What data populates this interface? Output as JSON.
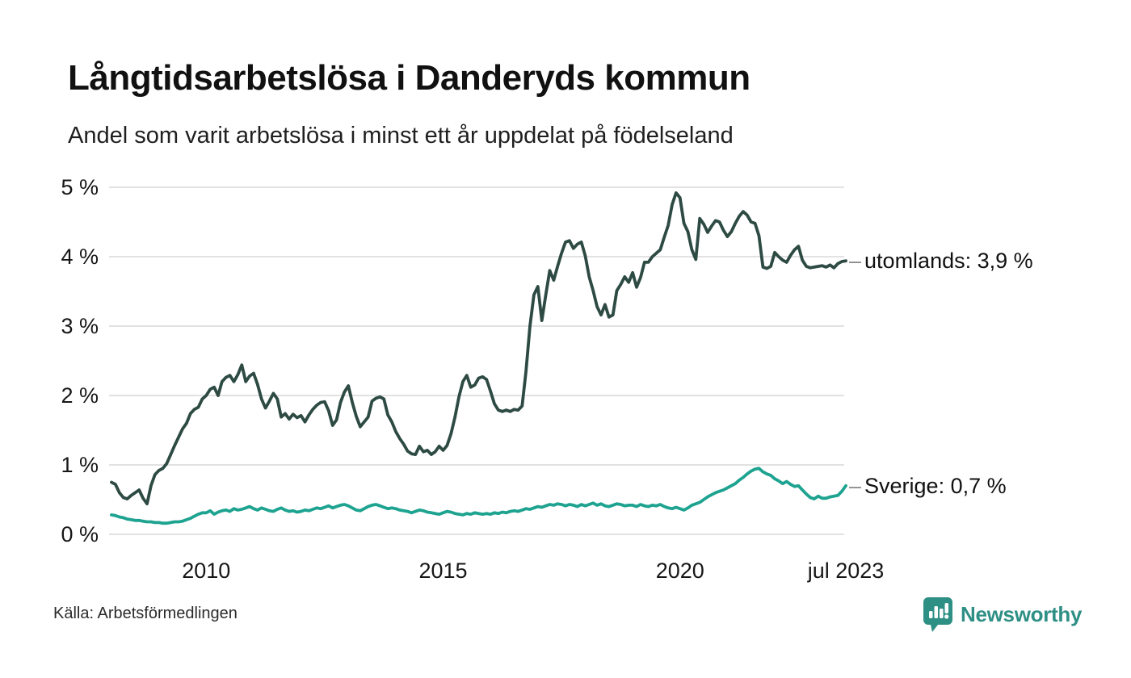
{
  "header": {
    "title": "Långtidsarbetslösa i Danderyds kommun",
    "subtitle": "Andel som varit arbetslösa i minst ett år uppdelat på födelseland"
  },
  "source": {
    "label": "Källa: Arbetsförmedlingen"
  },
  "brand": {
    "name": "Newsworthy",
    "color": "#2e8f85",
    "icon": "newsworthy-pin-barchart"
  },
  "chart_data": {
    "type": "line",
    "title": "Långtidsarbetslösa i Danderyds kommun",
    "subtitle": "Andel som varit arbetslösa i minst ett år uppdelat på födelseland",
    "unit": "%",
    "frequency": "monthly",
    "x_start": "2008-01",
    "x_end": "2023-07",
    "ylim": [
      0,
      5
    ],
    "grid": "horizontal",
    "legend_position": "end-of-line-labels",
    "leader_dash": "–",
    "grid_color": "#e2e2e2",
    "yticks": [
      {
        "label": "0 %",
        "value": 0
      },
      {
        "label": "1 %",
        "value": 1
      },
      {
        "label": "2 %",
        "value": 2
      },
      {
        "label": "3 %",
        "value": 3
      },
      {
        "label": "4 %",
        "value": 4
      },
      {
        "label": "5 %",
        "value": 5
      }
    ],
    "xticks": [
      {
        "label": "2010",
        "month_index": 24
      },
      {
        "label": "2015",
        "month_index": 84
      },
      {
        "label": "2020",
        "month_index": 144
      },
      {
        "label": "jul 2023",
        "month_index": 186
      }
    ],
    "series": [
      {
        "name": "utomlands",
        "end_label": "utomlands: 3,9 %",
        "last_value_label": "3,9 %",
        "color": "#2d4a43",
        "values": [
          0.75,
          0.72,
          0.6,
          0.53,
          0.51,
          0.56,
          0.6,
          0.64,
          0.52,
          0.44,
          0.7,
          0.86,
          0.92,
          0.95,
          1.02,
          1.15,
          1.28,
          1.4,
          1.52,
          1.6,
          1.74,
          1.8,
          1.83,
          1.95,
          2.0,
          2.09,
          2.12,
          2.0,
          2.2,
          2.26,
          2.29,
          2.2,
          2.3,
          2.44,
          2.2,
          2.28,
          2.32,
          2.16,
          1.95,
          1.82,
          1.92,
          2.03,
          1.95,
          1.69,
          1.74,
          1.66,
          1.73,
          1.68,
          1.71,
          1.62,
          1.72,
          1.8,
          1.86,
          1.9,
          1.91,
          1.78,
          1.57,
          1.65,
          1.9,
          2.05,
          2.14,
          1.9,
          1.7,
          1.55,
          1.62,
          1.69,
          1.92,
          1.96,
          1.98,
          1.95,
          1.72,
          1.62,
          1.48,
          1.38,
          1.3,
          1.2,
          1.16,
          1.15,
          1.27,
          1.19,
          1.21,
          1.15,
          1.19,
          1.27,
          1.21,
          1.28,
          1.45,
          1.69,
          1.98,
          2.2,
          2.29,
          2.12,
          2.15,
          2.25,
          2.27,
          2.23,
          2.06,
          1.88,
          1.79,
          1.77,
          1.79,
          1.77,
          1.8,
          1.79,
          1.85,
          2.35,
          3.0,
          3.45,
          3.57,
          3.08,
          3.45,
          3.8,
          3.66,
          3.86,
          4.05,
          4.21,
          4.23,
          4.12,
          4.18,
          4.21,
          4.01,
          3.71,
          3.51,
          3.28,
          3.16,
          3.31,
          3.13,
          3.16,
          3.51,
          3.6,
          3.71,
          3.63,
          3.77,
          3.56,
          3.7,
          3.92,
          3.92,
          4.0,
          4.05,
          4.1,
          4.28,
          4.45,
          4.75,
          4.92,
          4.85,
          4.48,
          4.36,
          4.1,
          3.96,
          4.55,
          4.47,
          4.35,
          4.44,
          4.52,
          4.5,
          4.38,
          4.29,
          4.36,
          4.48,
          4.58,
          4.65,
          4.6,
          4.5,
          4.48,
          4.3,
          3.85,
          3.83,
          3.86,
          4.06,
          4.0,
          3.95,
          3.92,
          4.02,
          4.1,
          4.15,
          3.95,
          3.86,
          3.84,
          3.85,
          3.86,
          3.87,
          3.85,
          3.88,
          3.84,
          3.9,
          3.93,
          3.94
        ]
      },
      {
        "name": "Sverige",
        "end_label": "Sverige: 0,7 %",
        "last_value_label": "0,7 %",
        "color": "#1da390",
        "values": [
          0.28,
          0.27,
          0.25,
          0.24,
          0.22,
          0.21,
          0.2,
          0.2,
          0.19,
          0.18,
          0.18,
          0.17,
          0.17,
          0.16,
          0.16,
          0.17,
          0.18,
          0.18,
          0.19,
          0.21,
          0.23,
          0.26,
          0.29,
          0.31,
          0.31,
          0.34,
          0.29,
          0.32,
          0.34,
          0.35,
          0.33,
          0.37,
          0.35,
          0.36,
          0.38,
          0.4,
          0.37,
          0.35,
          0.38,
          0.36,
          0.34,
          0.33,
          0.36,
          0.38,
          0.35,
          0.33,
          0.34,
          0.32,
          0.33,
          0.35,
          0.34,
          0.36,
          0.38,
          0.37,
          0.39,
          0.41,
          0.38,
          0.4,
          0.42,
          0.43,
          0.41,
          0.38,
          0.35,
          0.34,
          0.37,
          0.4,
          0.42,
          0.43,
          0.41,
          0.39,
          0.37,
          0.38,
          0.37,
          0.35,
          0.34,
          0.33,
          0.31,
          0.33,
          0.35,
          0.34,
          0.32,
          0.31,
          0.3,
          0.29,
          0.31,
          0.33,
          0.32,
          0.3,
          0.29,
          0.28,
          0.3,
          0.29,
          0.31,
          0.3,
          0.29,
          0.3,
          0.29,
          0.31,
          0.3,
          0.32,
          0.31,
          0.33,
          0.34,
          0.33,
          0.35,
          0.37,
          0.36,
          0.38,
          0.4,
          0.39,
          0.41,
          0.43,
          0.42,
          0.44,
          0.43,
          0.41,
          0.43,
          0.42,
          0.4,
          0.43,
          0.41,
          0.43,
          0.45,
          0.42,
          0.44,
          0.41,
          0.4,
          0.42,
          0.44,
          0.43,
          0.41,
          0.42,
          0.42,
          0.4,
          0.43,
          0.41,
          0.4,
          0.42,
          0.41,
          0.43,
          0.4,
          0.38,
          0.37,
          0.39,
          0.37,
          0.35,
          0.38,
          0.42,
          0.44,
          0.46,
          0.5,
          0.54,
          0.57,
          0.6,
          0.62,
          0.64,
          0.67,
          0.7,
          0.73,
          0.78,
          0.82,
          0.87,
          0.91,
          0.94,
          0.95,
          0.9,
          0.87,
          0.85,
          0.8,
          0.77,
          0.73,
          0.76,
          0.72,
          0.69,
          0.7,
          0.64,
          0.58,
          0.53,
          0.51,
          0.55,
          0.52,
          0.52,
          0.54,
          0.55,
          0.56,
          0.62,
          0.7
        ]
      }
    ]
  }
}
